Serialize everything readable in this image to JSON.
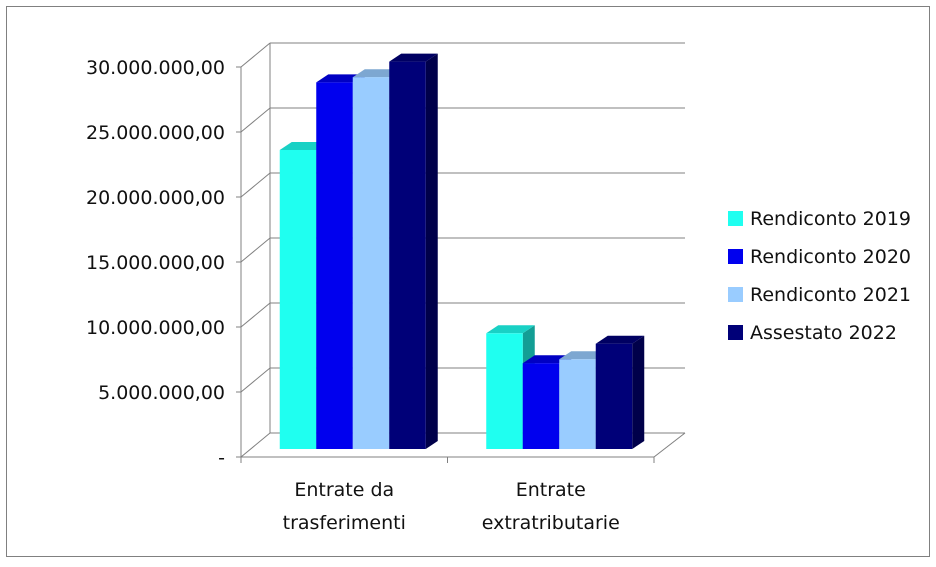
{
  "chart_data": {
    "type": "bar",
    "categories": [
      "Entrate da trasferimenti",
      "Entrate extratributarie"
    ],
    "category_lines": [
      [
        "Entrate da",
        "trasferimenti"
      ],
      [
        "Entrate",
        "extratributarie"
      ]
    ],
    "series": [
      {
        "name": "Rendiconto 2019",
        "values": [
          23000000,
          8900000
        ],
        "color": "#1ffff0"
      },
      {
        "name": "Rendiconto 2020",
        "values": [
          28200000,
          6600000
        ],
        "color": "#0000ee"
      },
      {
        "name": "Rendiconto 2021",
        "values": [
          28600000,
          6900000
        ],
        "color": "#99ccff"
      },
      {
        "name": "Assestato 2022",
        "values": [
          29800000,
          8100000
        ],
        "color": "#000078"
      }
    ],
    "y_ticks": [
      "-",
      "5.000.000,00",
      "10.000.000,00",
      "15.000.000,00",
      "20.000.000,00",
      "25.000.000,00",
      "30.000.000,00"
    ],
    "ylim": [
      0,
      30000000
    ],
    "grid": true,
    "legend_position": "right",
    "perspective": "3d"
  }
}
